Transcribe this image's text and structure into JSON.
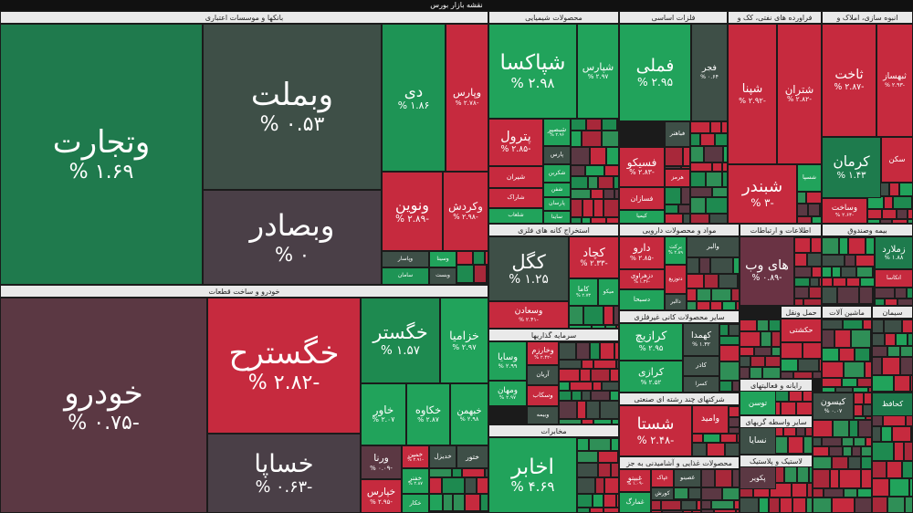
{
  "title": "نقشه بازار بورس",
  "sectors": [
    {
      "title": "بانکها و موسسات اعتباری",
      "tiles": [
        {
          "name": "وتجارت",
          "change": "۱.۶۹ %"
        },
        {
          "name": "وبملت",
          "change": "۰.۵۳ %"
        },
        {
          "name": "وبصادر",
          "change": "۰ %"
        },
        {
          "name": "دی",
          "change": "۱.۸۶ %"
        },
        {
          "name": "وپارس",
          "change": "-۲.۷۸ %"
        },
        {
          "name": "ونوین",
          "change": "-۲.۸۹ %"
        },
        {
          "name": "وکردش",
          "change": "-۲.۹۸ %"
        },
        {
          "name": "وسینا"
        },
        {
          "name": "وپاسار"
        },
        {
          "name": "وبست"
        },
        {
          "name": "سامان"
        }
      ]
    },
    {
      "title": "خودرو و ساخت قطعات",
      "tiles": [
        {
          "name": "خودرو",
          "change": "-۰.۷۵ %"
        },
        {
          "name": "خگسترح",
          "change": "-۲.۸۲ %"
        },
        {
          "name": "خساپا",
          "change": "-۰.۶۳ %"
        },
        {
          "name": "خگستر",
          "change": "۱.۵۷ %"
        },
        {
          "name": "خزامیا",
          "change": "۲.۹۷ %"
        },
        {
          "name": "خاور",
          "change": "۲.۰۷ %"
        },
        {
          "name": "خکاوه",
          "change": "۲.۸۷ %"
        },
        {
          "name": "خبهمن",
          "change": "۲.۹۸ %"
        },
        {
          "name": "ورنا",
          "change": "-۰.۰۹ %"
        },
        {
          "name": "خمین",
          "change": "-۲.۹۱ %"
        },
        {
          "name": "خدیزل"
        },
        {
          "name": "ختور"
        },
        {
          "name": "خفنر",
          "change": "۲.۸۷ %"
        },
        {
          "name": "خکار"
        },
        {
          "name": "خپارس",
          "change": "-۲.۹۵ %"
        }
      ]
    },
    {
      "title": "محصولات شیمیایی",
      "tiles": [
        {
          "name": "شپاکسا",
          "change": "۲.۹۸ %"
        },
        {
          "name": "شپارس",
          "change": "۲.۹۷ %"
        },
        {
          "name": "پترول",
          "change": "-۲.۸۵ %"
        },
        {
          "name": "شبصیر",
          "change": "۲.۹۶ %"
        },
        {
          "name": "پارس"
        },
        {
          "name": "شیران"
        },
        {
          "name": "شکربن"
        },
        {
          "name": "شاراک"
        },
        {
          "name": "شفن"
        },
        {
          "name": "پارسان"
        },
        {
          "name": "شلعاب"
        },
        {
          "name": "ساینا"
        }
      ]
    },
    {
      "title": "فلزات اساسی",
      "tiles": [
        {
          "name": "فملی",
          "change": "۲.۹۵ %"
        },
        {
          "name": "فجر",
          "change": "۰.۶۴ %"
        },
        {
          "name": "فسیکو",
          "change": "-۲.۸۳ %"
        },
        {
          "name": "فباهنر"
        },
        {
          "name": "هرمز"
        },
        {
          "name": "فسازان"
        },
        {
          "name": "کیمیا"
        }
      ]
    },
    {
      "title": "فراورده های نفتی، کک و",
      "tiles": [
        {
          "name": "شپنا",
          "change": "-۲.۹۲ %"
        },
        {
          "name": "شتران",
          "change": "-۲.۸۲ %"
        },
        {
          "name": "شبندر",
          "change": "-۳ %"
        },
        {
          "name": "شسپا"
        }
      ]
    },
    {
      "title": "انبوه سازی، املاک و",
      "tiles": [
        {
          "name": "ثاخت",
          "change": "-۲.۸۷ %"
        },
        {
          "name": "ثبهساز",
          "change": "-۲.۹۳ %"
        },
        {
          "name": "کرمان",
          "change": "۱.۴۳ %"
        },
        {
          "name": "سکن"
        },
        {
          "name": "وساخت",
          "change": "-۲.۶۴ %"
        }
      ]
    },
    {
      "title": "استخراج کانه های فلزی",
      "tiles": [
        {
          "name": "کگل",
          "change": "۱.۲۵ %"
        },
        {
          "name": "کچاد",
          "change": "-۲.۳۳ %"
        },
        {
          "name": "وسعادن",
          "change": "-۲.۴۱ %"
        },
        {
          "name": "کاما",
          "change": "۲.۷۳ %"
        },
        {
          "name": "میکو"
        }
      ]
    },
    {
      "title": "مواد و محصولات دارویی",
      "tiles": [
        {
          "name": "دارو",
          "change": "-۲.۸۵ %"
        },
        {
          "name": "برکت",
          "change": "۲.۸۹ %"
        },
        {
          "name": "والبر"
        },
        {
          "name": "دزهراوی",
          "change": "-۱.۳۶ %"
        },
        {
          "name": "دتوزیع"
        },
        {
          "name": "دسبحا"
        },
        {
          "name": "دالبر"
        }
      ]
    },
    {
      "title": "اطلاعات و ارتباطات",
      "tiles": [
        {
          "name": "های وب",
          "change": "-۰.۸۹ %"
        }
      ]
    },
    {
      "title": "بیمه وصندوق",
      "tiles": [
        {
          "name": "زملارد",
          "change": "۱.۸۸ %"
        },
        {
          "name": "اتکاسا"
        }
      ]
    },
    {
      "title": "سایر محصولات کانی غیرفلزی",
      "tiles": [
        {
          "name": "کرازیچ",
          "change": "۲.۹۵ %"
        },
        {
          "name": "کهمدا",
          "change": "۱.۳۲ %"
        },
        {
          "name": "کرازی",
          "change": "۲.۵۲ %"
        },
        {
          "name": "کاذر"
        },
        {
          "name": "کسرا"
        }
      ]
    },
    {
      "title": "سرمایه گذاریها",
      "tiles": [
        {
          "name": "وسایا",
          "change": "۲.۹۹ %"
        },
        {
          "name": "وخارزم",
          "change": "-۲.۴۲ %"
        },
        {
          "name": "آریان"
        },
        {
          "name": "ومهان",
          "change": "۲.۹۷ %"
        },
        {
          "name": "وسکاب"
        },
        {
          "name": "وبیمه"
        }
      ]
    },
    {
      "title": "مخابرات",
      "tiles": [
        {
          "name": "اخابر",
          "change": "۴.۶۹ %"
        }
      ]
    },
    {
      "title": "شرکتهای چند رشته ای صنعتی",
      "tiles": [
        {
          "name": "شستا",
          "change": "-۲.۴۸ %"
        },
        {
          "name": "وامید"
        }
      ]
    },
    {
      "title": "محصولات غذایی و آشامیدنی به جز",
      "tiles": [
        {
          "name": "غبینو",
          "change": "-۱.۰۹ %"
        },
        {
          "name": "غپاک"
        },
        {
          "name": "غصینو"
        },
        {
          "name": "غمارگ"
        },
        {
          "name": "کورش"
        }
      ]
    },
    {
      "title": "حمل ونقل",
      "tiles": [
        {
          "name": "حکشتی"
        }
      ]
    },
    {
      "title": "ماشین آلات",
      "tiles": [
        {
          "name": "کیسون",
          "change": "۰.۰۷ %"
        }
      ]
    },
    {
      "title": "سیمان",
      "tiles": [
        {
          "name": "کحافظ"
        }
      ]
    },
    {
      "title": "رایانه و فعالیتهای",
      "tiles": [
        {
          "name": "توسن"
        }
      ]
    },
    {
      "title": "سایر واسطه گریهای",
      "tiles": [
        {
          "name": "نسایا"
        }
      ]
    },
    {
      "title": "لاستیک و پلاستیک",
      "tiles": [
        {
          "name": "پکویر"
        }
      ]
    }
  ]
}
